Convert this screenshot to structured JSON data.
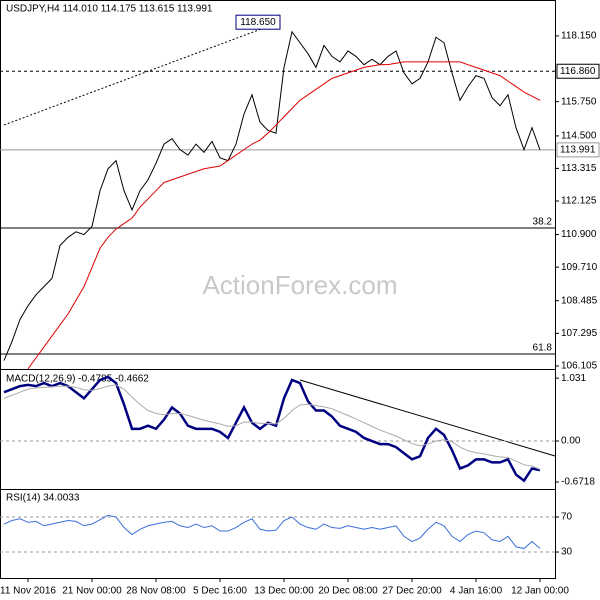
{
  "chart_data": [
    {
      "type": "line",
      "title": "USDJPY,H4  114.010 114.175 113.615 113.991",
      "watermark": "ActionForex.com",
      "ylim": [
        106.03,
        119.46
      ],
      "yticks": [
        {
          "value": 118.15,
          "label": "118.150"
        },
        {
          "value": 115.75,
          "label": "115.750"
        },
        {
          "value": 114.5,
          "label": "114.500"
        },
        113.315,
        112.125,
        {
          "value": 110.9,
          "label": "110.900"
        },
        {
          "value": 109.71,
          "label": "109.710"
        },
        108.485,
        107.295,
        106.105
      ],
      "levels": [
        {
          "value": 116.86,
          "label": "116.860",
          "color": "#000000",
          "style": "dashed"
        },
        {
          "value": 113.991,
          "label": "113.991",
          "color": "#999999",
          "style": "solid"
        }
      ],
      "fib_levels": [
        {
          "value": 111.14,
          "label": "38.2"
        },
        {
          "value": 106.54,
          "label": "61.8"
        }
      ],
      "annotation": {
        "label": "118.650",
        "value": 118.65
      },
      "series": [
        {
          "name": "USDJPY",
          "color": "#000000",
          "values": [
            106.3,
            107.0,
            107.8,
            108.3,
            108.7,
            109.0,
            109.3,
            110.5,
            110.8,
            111.0,
            110.9,
            111.2,
            112.5,
            113.3,
            113.6,
            112.5,
            111.8,
            112.5,
            112.9,
            113.5,
            114.2,
            114.4,
            114.0,
            113.8,
            114.2,
            113.9,
            114.3,
            113.7,
            113.6,
            114.2,
            115.3,
            116.0,
            115.0,
            114.7,
            114.6,
            117.0,
            118.3,
            117.9,
            117.5,
            117.0,
            117.8,
            117.4,
            117.2,
            117.6,
            117.4,
            117.1,
            117.3,
            117.1,
            117.4,
            117.6,
            116.8,
            116.4,
            116.6,
            117.2,
            118.1,
            117.9,
            116.8,
            115.8,
            116.3,
            116.7,
            116.6,
            115.9,
            115.6,
            116.0,
            114.8,
            114.0,
            114.8,
            113.991
          ]
        },
        {
          "color": "#e00000",
          "values": [
            null,
            null,
            null,
            106.0,
            106.4,
            106.8,
            107.2,
            107.6,
            108.0,
            108.5,
            109.0,
            109.7,
            110.4,
            110.8,
            111.1,
            111.3,
            111.5,
            111.9,
            112.2,
            112.5,
            112.8,
            112.9,
            113.0,
            113.1,
            113.2,
            113.3,
            113.35,
            113.4,
            113.6,
            113.8,
            114.0,
            114.2,
            114.35,
            114.6,
            114.9,
            115.2,
            115.5,
            115.8,
            116.0,
            116.2,
            116.4,
            116.6,
            116.7,
            116.8,
            116.9,
            117.0,
            117.05,
            117.1,
            117.1,
            117.15,
            117.2,
            117.2,
            117.2,
            117.2,
            117.2,
            117.2,
            117.2,
            117.2,
            117.1,
            117.0,
            116.9,
            116.8,
            116.7,
            116.5,
            116.3,
            116.1,
            115.95,
            115.8
          ]
        }
      ]
    },
    {
      "type": "line",
      "title": "MACD(12,26,9) -0.4785 -0.4662",
      "ylim": [
        -0.77,
        1.164
      ],
      "yticks": [
        1.031,
        {
          "value": 0,
          "label": "0.00"
        },
        -0.6718
      ],
      "grid_ticks": [
        1
      ],
      "series": [
        {
          "color": "#000080",
          "width": 2.5,
          "values": [
            0.8,
            0.85,
            0.9,
            0.92,
            0.9,
            0.95,
            0.9,
            0.95,
            0.9,
            0.8,
            0.7,
            0.85,
            1.0,
            1.05,
            0.95,
            0.6,
            0.2,
            0.2,
            0.25,
            0.2,
            0.35,
            0.55,
            0.45,
            0.25,
            0.2,
            0.2,
            0.2,
            0.15,
            0.05,
            0.3,
            0.55,
            0.3,
            0.2,
            0.3,
            0.25,
            0.7,
            1.0,
            0.95,
            0.65,
            0.5,
            0.5,
            0.4,
            0.25,
            0.2,
            0.15,
            0.05,
            0.0,
            -0.05,
            -0.05,
            -0.1,
            -0.2,
            -0.3,
            -0.25,
            0.05,
            0.2,
            0.1,
            -0.15,
            -0.45,
            -0.4,
            -0.3,
            -0.3,
            -0.35,
            -0.35,
            -0.3,
            -0.55,
            -0.65,
            -0.45,
            -0.4785
          ]
        },
        {
          "color": "#aaaaaa",
          "width": 1,
          "values": [
            0.7,
            0.75,
            0.8,
            0.85,
            0.87,
            0.88,
            0.89,
            0.9,
            0.9,
            0.88,
            0.84,
            0.83,
            0.86,
            0.9,
            0.92,
            0.85,
            0.72,
            0.6,
            0.5,
            0.45,
            0.43,
            0.45,
            0.45,
            0.42,
            0.38,
            0.34,
            0.31,
            0.28,
            0.24,
            0.25,
            0.31,
            0.31,
            0.29,
            0.29,
            0.28,
            0.37,
            0.5,
            0.59,
            0.6,
            0.58,
            0.56,
            0.53,
            0.47,
            0.42,
            0.36,
            0.3,
            0.24,
            0.18,
            0.13,
            0.08,
            0.02,
            -0.04,
            -0.08,
            -0.05,
            0.0,
            0.02,
            -0.01,
            -0.1,
            -0.16,
            -0.19,
            -0.21,
            -0.24,
            -0.26,
            -0.27,
            -0.33,
            -0.39,
            -0.41,
            -0.4662
          ]
        }
      ]
    },
    {
      "type": "line",
      "title": "RSI(14) 34.0033",
      "ylim": [
        0.3,
        100.9
      ],
      "yticks": [
        70,
        30
      ],
      "grid_ticks": [
        0,
        1
      ],
      "categories": [
        null,
        null,
        null,
        "11 Nov 2016",
        null,
        null,
        null,
        null,
        null,
        null,
        null,
        "21 Nov 00:00",
        null,
        null,
        null,
        null,
        null,
        null,
        null,
        "28 Nov 08:00",
        null,
        null,
        null,
        null,
        null,
        null,
        null,
        "5 Dec 16:00",
        null,
        null,
        null,
        null,
        null,
        null,
        null,
        "13 Dec 00:00",
        null,
        null,
        null,
        null,
        null,
        null,
        null,
        "20 Dec 08:00",
        null,
        null,
        null,
        null,
        null,
        null,
        null,
        "27 Dec 20:00",
        null,
        null,
        null,
        null,
        null,
        null,
        null,
        "4 Jan 16:00",
        null,
        null,
        null,
        null,
        null,
        null,
        null,
        "12 Jan 00:00"
      ],
      "series": [
        {
          "color": "#3a6fd8",
          "width": 1,
          "values": [
            62,
            66,
            68,
            64,
            65,
            60,
            62,
            64,
            66,
            65,
            60,
            62,
            67,
            72,
            70,
            58,
            50,
            56,
            60,
            62,
            64,
            65,
            60,
            58,
            62,
            58,
            60,
            54,
            54,
            58,
            64,
            68,
            56,
            54,
            55,
            66,
            70,
            62,
            58,
            56,
            62,
            58,
            57,
            60,
            58,
            56,
            58,
            56,
            58,
            60,
            48,
            42,
            46,
            56,
            64,
            60,
            48,
            42,
            50,
            54,
            52,
            44,
            42,
            48,
            36,
            34,
            42,
            34.0033
          ]
        }
      ]
    }
  ]
}
